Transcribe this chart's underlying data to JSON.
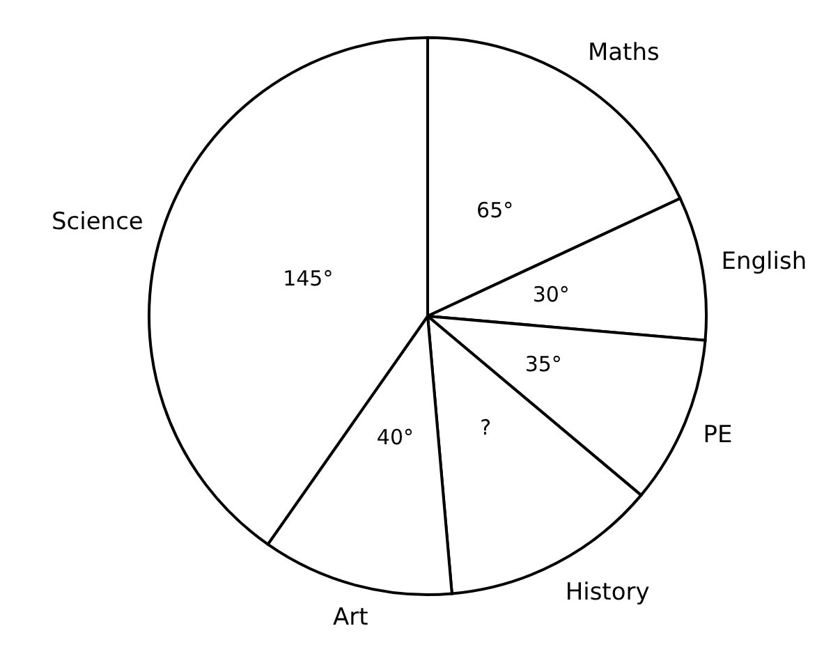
{
  "chart_data": {
    "type": "pie",
    "categories": [
      "Maths",
      "English",
      "PE",
      "History",
      "Art",
      "Science"
    ],
    "values": [
      65,
      30,
      35,
      45,
      40,
      145
    ],
    "value_labels": [
      "65°",
      "30°",
      "35°",
      "?",
      "40°",
      "145°"
    ],
    "colors": [
      "#ffffff",
      "#ffffff",
      "#ffffff",
      "#ffffff",
      "#ffffff",
      "#ffffff"
    ],
    "legend": false
  }
}
